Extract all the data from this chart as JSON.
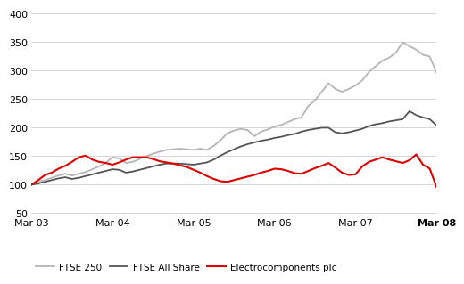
{
  "ylim": [
    50,
    410
  ],
  "yticks": [
    50,
    100,
    150,
    200,
    250,
    300,
    350,
    400
  ],
  "xtick_labels": [
    "Mar 03",
    "Mar 04",
    "Mar 05",
    "Mar 06",
    "Mar 07",
    "Mar 08"
  ],
  "background_color": "#ffffff",
  "grid_color": "#d0d0d0",
  "legend": [
    {
      "label": "FTSE 250",
      "color": "#b5b5b5",
      "lw": 1.3
    },
    {
      "label": "FTSE All Share",
      "color": "#555555",
      "lw": 1.3
    },
    {
      "label": "Electrocomponents plc",
      "color": "#dd0000",
      "lw": 1.5
    }
  ],
  "ftse250": [
    100,
    105,
    108,
    112,
    116,
    119,
    116,
    119,
    122,
    127,
    132,
    138,
    148,
    146,
    138,
    140,
    145,
    150,
    154,
    158,
    161,
    162,
    163,
    162,
    161,
    163,
    161,
    168,
    178,
    190,
    195,
    198,
    196,
    185,
    193,
    197,
    202,
    205,
    210,
    215,
    218,
    238,
    248,
    263,
    278,
    268,
    263,
    268,
    274,
    283,
    298,
    308,
    318,
    323,
    332,
    350,
    343,
    337,
    328,
    325,
    297
  ],
  "ftse_all": [
    100,
    102,
    105,
    108,
    111,
    113,
    110,
    112,
    115,
    118,
    121,
    124,
    127,
    126,
    121,
    123,
    126,
    129,
    132,
    135,
    137,
    137,
    137,
    136,
    135,
    137,
    139,
    144,
    151,
    157,
    162,
    167,
    171,
    174,
    177,
    179,
    182,
    184,
    187,
    189,
    193,
    196,
    198,
    200,
    200,
    192,
    190,
    192,
    195,
    198,
    203,
    206,
    208,
    211,
    213,
    215,
    229,
    222,
    218,
    215,
    204
  ],
  "electrocomponents": [
    100,
    108,
    117,
    121,
    128,
    133,
    140,
    148,
    151,
    144,
    140,
    138,
    135,
    139,
    144,
    148,
    148,
    148,
    145,
    141,
    139,
    137,
    134,
    131,
    126,
    121,
    115,
    110,
    106,
    105,
    108,
    111,
    114,
    117,
    121,
    124,
    128,
    127,
    124,
    120,
    119,
    124,
    129,
    133,
    138,
    130,
    121,
    117,
    118,
    132,
    140,
    144,
    148,
    144,
    141,
    138,
    143,
    153,
    135,
    128,
    96
  ]
}
